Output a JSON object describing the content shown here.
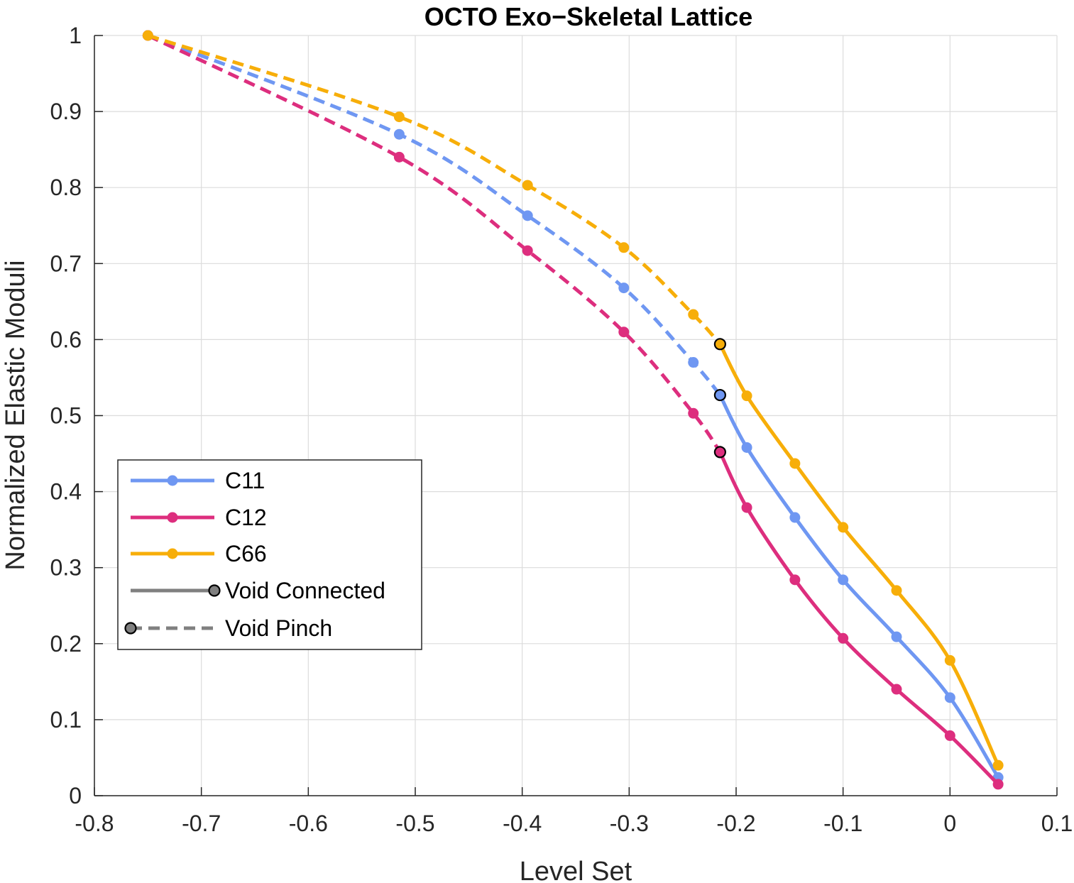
{
  "chart_data": {
    "type": "line",
    "title": "OCTO Exo−Skeletal Lattice",
    "xlabel": "Level Set",
    "ylabel": "Normalized Elastic Moduli",
    "xlim": [
      -0.8,
      0.1
    ],
    "ylim": [
      0,
      1
    ],
    "xticks": [
      -0.8,
      -0.7,
      -0.6,
      -0.5,
      -0.4,
      -0.3,
      -0.2,
      -0.1,
      0,
      0.1
    ],
    "xtick_labels": [
      "-0.8",
      "-0.7",
      "-0.6",
      "-0.5",
      "-0.4",
      "-0.3",
      "-0.2",
      "-0.1",
      "0",
      "0.1"
    ],
    "yticks": [
      0,
      0.1,
      0.2,
      0.3,
      0.4,
      0.5,
      0.6,
      0.7,
      0.8,
      0.9,
      1
    ],
    "ytick_labels": [
      "0",
      "0.1",
      "0.2",
      "0.3",
      "0.4",
      "0.5",
      "0.6",
      "0.7",
      "0.8",
      "0.9",
      "1"
    ],
    "grid": true,
    "legend_position": "lower-left",
    "transition_x": -0.215,
    "series": [
      {
        "name": "C11",
        "color": "#6f97f2",
        "x": [
          -0.75,
          -0.515,
          -0.395,
          -0.305,
          -0.24,
          -0.215,
          -0.19,
          -0.145,
          -0.1,
          -0.05,
          0.0,
          0.045
        ],
        "y": [
          1.0,
          0.87,
          0.763,
          0.668,
          0.57,
          0.527,
          0.458,
          0.366,
          0.284,
          0.209,
          0.129,
          0.024
        ]
      },
      {
        "name": "C12",
        "color": "#dd2e7e",
        "x": [
          -0.75,
          -0.515,
          -0.395,
          -0.305,
          -0.24,
          -0.215,
          -0.19,
          -0.145,
          -0.1,
          -0.05,
          0.0,
          0.045
        ],
        "y": [
          1.0,
          0.84,
          0.717,
          0.61,
          0.503,
          0.452,
          0.379,
          0.284,
          0.207,
          0.14,
          0.079,
          0.015
        ]
      },
      {
        "name": "C66",
        "color": "#f7ae09",
        "x": [
          -0.75,
          -0.515,
          -0.395,
          -0.305,
          -0.24,
          -0.215,
          -0.19,
          -0.145,
          -0.1,
          -0.05,
          0.0,
          0.045
        ],
        "y": [
          1.0,
          0.893,
          0.803,
          0.721,
          0.633,
          0.594,
          0.526,
          0.437,
          0.353,
          0.27,
          0.178,
          0.04
        ]
      }
    ],
    "legend": [
      {
        "label": "C11",
        "kind": "series",
        "color": "#6f97f2"
      },
      {
        "label": "C12",
        "kind": "series",
        "color": "#dd2e7e"
      },
      {
        "label": "C66",
        "kind": "series",
        "color": "#f7ae09"
      },
      {
        "label": "Void Connected",
        "kind": "solid",
        "color": "#808080"
      },
      {
        "label": "Void Pinch",
        "kind": "dashed",
        "color": "#808080"
      }
    ]
  }
}
